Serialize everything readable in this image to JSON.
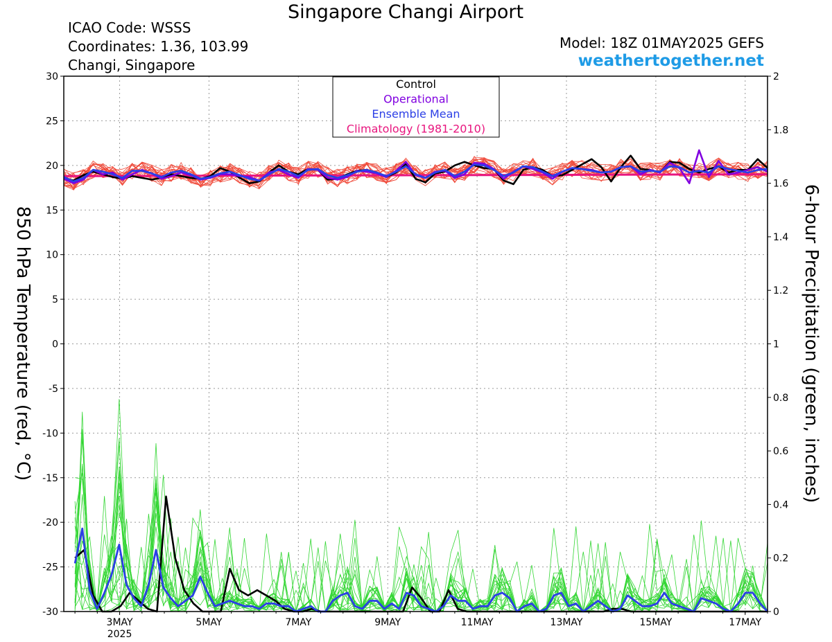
{
  "header": {
    "title": "Singapore Changi Airport",
    "icao": "ICAO Code: WSSS",
    "coordinates": "Coordinates: 1.36, 103.99",
    "location": "Changi, Singapore",
    "model": "Model: 18Z 01MAY2025 GEFS",
    "site": "weathertogether.net"
  },
  "colors": {
    "control": "#000000",
    "operational": "#8000e0",
    "ensemble_mean": "#2b3fe6",
    "climatology": "#e8157e",
    "members_temp": "#f04a3a",
    "members_precip": "#33d633",
    "site": "#1e9be6"
  },
  "chart_data": {
    "type": "line",
    "ylabel": "850 hPa Temperature (red, °C)",
    "y2label": "6-hour Precipitation (green, inches)",
    "ylim": [
      -30,
      30
    ],
    "y2lim": [
      0,
      2
    ],
    "yticks": [
      "30",
      "25",
      "20",
      "15",
      "10",
      "5",
      "0",
      "-5",
      "-10",
      "-15",
      "-20",
      "-25",
      "-30"
    ],
    "y2ticks": [
      "2",
      "1.8",
      "1.6",
      "1.4",
      "1.2",
      "1",
      "0.8",
      "0.6",
      "0.4",
      "0.2",
      "0"
    ],
    "xlim": [
      0,
      63
    ],
    "xticks": [
      {
        "x": 5,
        "label": "3MAY",
        "sub": "2025"
      },
      {
        "x": 13,
        "label": "5MAY"
      },
      {
        "x": 21,
        "label": "7MAY"
      },
      {
        "x": 29,
        "label": "9MAY"
      },
      {
        "x": 37,
        "label": "11MAY"
      },
      {
        "x": 45,
        "label": "13MAY"
      },
      {
        "x": 53,
        "label": "15MAY"
      },
      {
        "x": 61,
        "label": "17MAY"
      }
    ],
    "grid": true,
    "legend_position": "top-center",
    "legend": [
      "Control",
      "Operational",
      "Ensemble Mean",
      "Climatology (1981-2010)"
    ],
    "series": [
      {
        "name": "Control",
        "axis": "temp",
        "values": [
          18.6,
          18.3,
          18.9,
          19.3,
          19.0,
          18.7,
          18.5,
          18.8,
          18.6,
          18.4,
          18.6,
          19.0,
          18.8,
          18.6,
          18.5,
          18.8,
          19.7,
          19.3,
          18.6,
          18.0,
          18.2,
          19.2,
          20.0,
          19.3,
          19.0,
          19.6,
          19.5,
          18.4,
          18.5,
          19.0,
          19.4,
          19.5,
          19.2,
          18.7,
          19.2,
          20.2,
          18.5,
          18.1,
          19.1,
          19.3,
          20.0,
          20.4,
          20.0,
          19.7,
          19.6,
          18.3,
          17.9,
          19.5,
          19.8,
          19.5,
          18.8,
          18.9,
          19.5,
          20.1,
          20.7,
          19.8,
          18.2,
          19.8,
          21.1,
          19.6,
          19.5,
          19.2,
          20.4,
          20.3,
          19.6,
          19.2,
          19.6,
          19.9,
          19.2,
          19.5,
          19.5,
          20.7,
          19.7
        ]
      },
      {
        "name": "Operational",
        "axis": "temp",
        "values": [
          18.5,
          18.0,
          18.4,
          19.5,
          19.0,
          19.2,
          18.4,
          19.0,
          19.5,
          19.1,
          18.5,
          18.8,
          19.2,
          18.9,
          18.4,
          18.6,
          19.0,
          19.0,
          18.8,
          18.7,
          18.3,
          19.2,
          19.5,
          19.0,
          18.6,
          19.6,
          19.5,
          18.6,
          18.4,
          18.7,
          19.4,
          19.3,
          19.1,
          18.7,
          19.4,
          20.4,
          18.9,
          18.6,
          19.3,
          19.4,
          18.6,
          19.0,
          20.3,
          20.2,
          19.6,
          18.5,
          19.3,
          19.9,
          19.6,
          19.2,
          18.5,
          19.3,
          19.7,
          19.6,
          19.5,
          19.2,
          19.3,
          19.8,
          19.9,
          19.0,
          19.5,
          19.2,
          20.3,
          19.7,
          18.0,
          21.7,
          18.7,
          20.5,
          19.0,
          19.2,
          19.5,
          19.8,
          19.3
        ]
      },
      {
        "name": "Ensemble Mean",
        "axis": "temp",
        "values": [
          18.7,
          18.2,
          18.6,
          19.5,
          19.3,
          19.0,
          18.6,
          19.4,
          19.4,
          19.1,
          18.7,
          19.2,
          19.4,
          19.0,
          18.5,
          18.7,
          19.1,
          19.3,
          18.9,
          18.5,
          18.3,
          19.0,
          19.6,
          19.3,
          18.8,
          19.5,
          19.6,
          18.9,
          18.6,
          18.9,
          19.3,
          19.5,
          19.2,
          18.8,
          19.3,
          19.9,
          19.0,
          18.6,
          19.2,
          19.5,
          18.8,
          19.3,
          20.1,
          20.0,
          19.5,
          18.8,
          19.2,
          19.9,
          19.8,
          19.3,
          18.8,
          19.3,
          19.7,
          19.6,
          19.4,
          19.2,
          19.3,
          19.8,
          19.9,
          19.3,
          19.4,
          19.3,
          19.9,
          19.8,
          19.2,
          19.4,
          19.2,
          19.9,
          19.6,
          19.4,
          19.2,
          19.5,
          19.6
        ]
      },
      {
        "name": "Climatology (1981-2010)",
        "axis": "temp",
        "values": [
          18.8,
          19.0
        ]
      },
      {
        "name": "Control",
        "axis": "precip",
        "x_start": 1,
        "values": [
          0.2,
          0.23,
          0.06,
          0.0,
          0.0,
          0.02,
          0.07,
          0.04,
          0.01,
          0.0,
          0.43,
          0.2,
          0.08,
          0.03,
          0.0,
          0.0,
          0.0,
          0.16,
          0.08,
          0.06,
          0.08,
          0.06,
          0.04,
          0.01,
          0.0,
          0.0,
          0.01,
          0.0,
          0.0,
          0.0,
          0.0,
          0.0,
          0.0,
          0.0,
          0.0,
          0.0,
          0.0,
          0.09,
          0.05,
          0.0,
          0.0,
          0.08,
          0.01,
          0.0,
          0.0,
          0.0,
          0.0,
          0.0,
          0.0,
          0.0,
          0.0,
          0.0,
          0.0,
          0.0,
          0.0,
          0.0,
          0.0,
          0.0,
          0.0,
          0.01,
          0.01,
          0.0,
          0.0,
          0.0,
          0.0,
          0.0,
          0.0,
          0.0,
          0.0,
          0.0,
          0.0,
          0.0,
          0.0,
          0.0,
          0.0,
          0.0,
          0.0
        ]
      },
      {
        "name": "Ensemble Mean",
        "axis": "precip",
        "x_start": 1,
        "values": [
          0.18,
          0.31,
          0.08,
          0.01,
          0.07,
          0.14,
          0.25,
          0.1,
          0.05,
          0.02,
          0.1,
          0.23,
          0.09,
          0.05,
          0.02,
          0.04,
          0.06,
          0.13,
          0.07,
          0.02,
          0.03,
          0.04,
          0.03,
          0.02,
          0.02,
          0.01,
          0.03,
          0.03,
          0.02,
          0.02,
          0.0,
          0.01,
          0.02,
          0.0,
          0.0,
          0.04,
          0.06,
          0.07,
          0.02,
          0.01,
          0.04,
          0.04,
          0.01,
          0.03,
          0.01,
          0.07,
          0.06,
          0.02,
          0.01,
          0.0,
          0.02,
          0.06,
          0.04,
          0.04,
          0.01,
          0.02,
          0.02,
          0.06,
          0.07,
          0.05,
          0.0,
          0.02,
          0.03,
          0.0,
          0.01,
          0.06,
          0.07,
          0.02,
          0.03,
          0.0,
          0.02,
          0.04,
          0.02,
          0.0,
          0.01,
          0.06,
          0.04,
          0.02,
          0.02,
          0.03,
          0.07,
          0.03,
          0.02,
          0.01,
          0.0,
          0.05,
          0.04,
          0.03,
          0.01,
          0.0,
          0.03,
          0.07,
          0.07,
          0.03,
          0.0
        ]
      }
    ]
  }
}
